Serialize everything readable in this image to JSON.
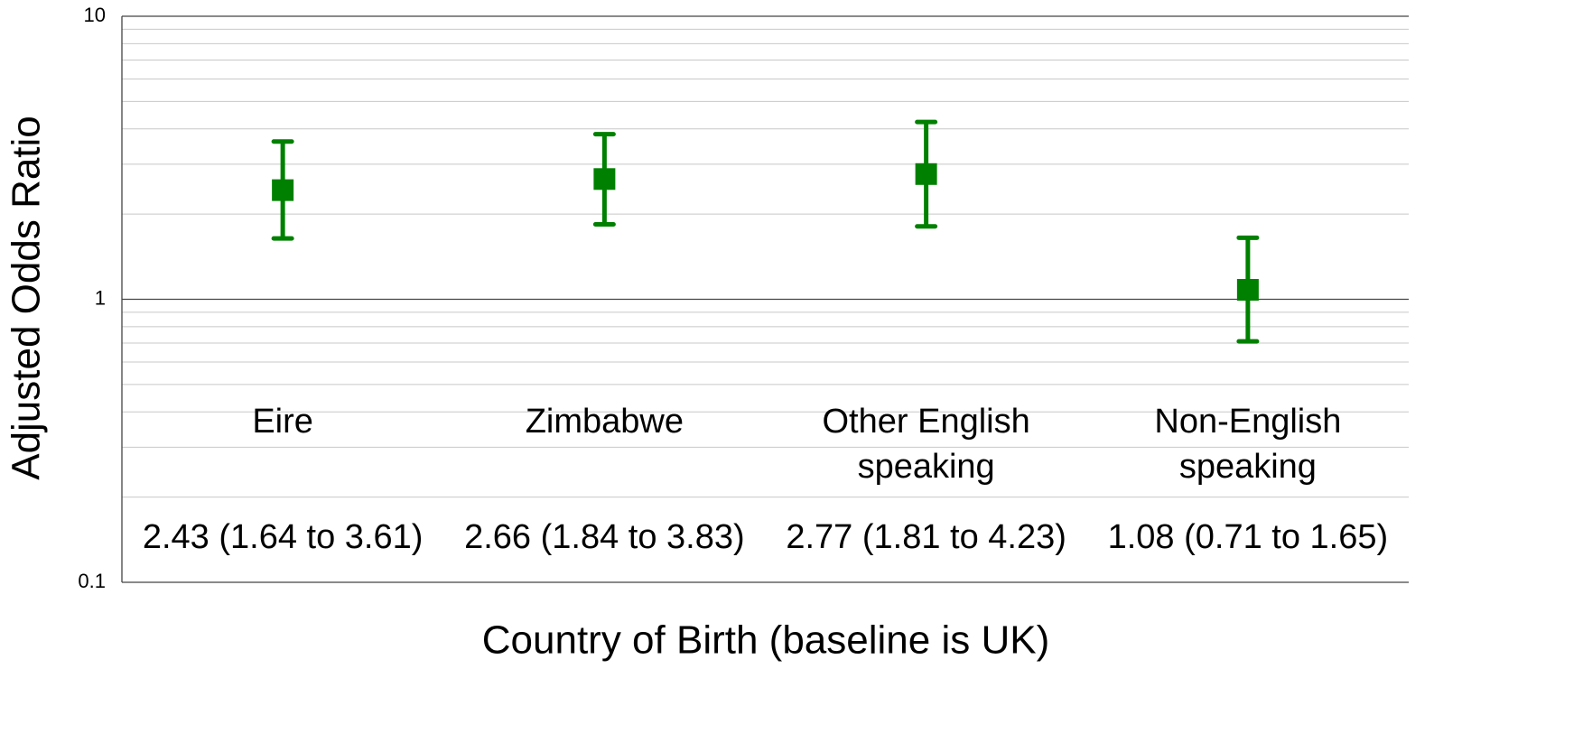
{
  "chart_data": {
    "type": "errorbar",
    "x_label": "Country of Birth (baseline is UK)",
    "y_label": "Adjusted Odds Ratio",
    "categories": [
      "Eire",
      "Zimbabwe",
      "Other English speaking",
      "Non-English speaking"
    ],
    "values": [
      2.43,
      2.66,
      2.77,
      1.08
    ],
    "lower": [
      1.64,
      1.84,
      1.81,
      0.71
    ],
    "upper": [
      3.61,
      3.83,
      4.23,
      1.65
    ],
    "value_labels": [
      "2.43 (1.64 to 3.61)",
      "2.66 (1.84 to 3.83)",
      "2.77 (1.81 to 4.23)",
      "1.08 (0.71 to 1.65)"
    ],
    "color": "#008000",
    "ylim": [
      0.1,
      10
    ],
    "yticks": [
      0.1,
      1,
      10
    ],
    "log_scale": true,
    "grid": true,
    "minor_grid": true
  }
}
